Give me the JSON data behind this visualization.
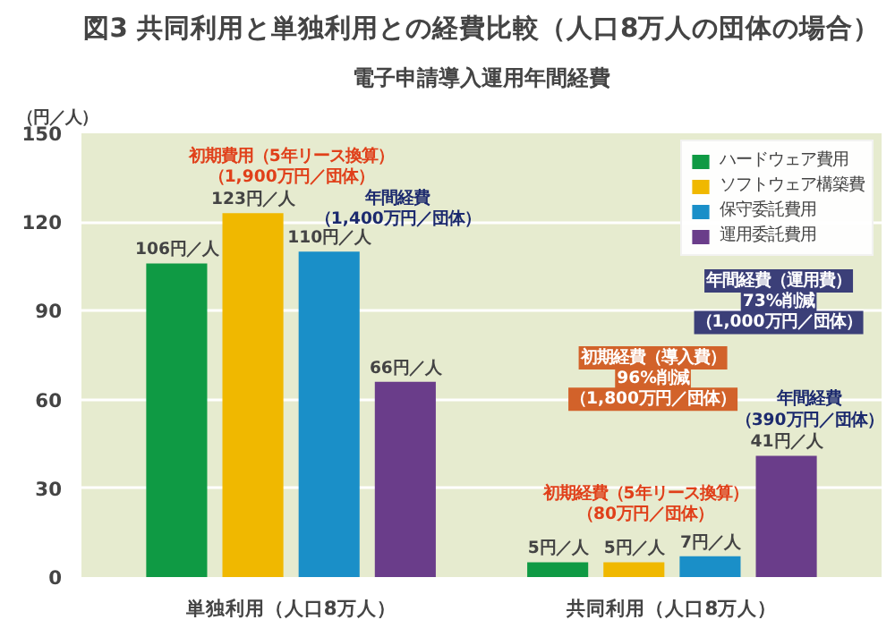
{
  "chart_data": {
    "type": "bar",
    "title": "図3 共同利用と単独利用との経費比較（人口8万人の団体の場合）",
    "subtitle": "電子申請導入運用年間経費",
    "ylabel": "（円／人）",
    "categories": [
      "単独利用（人口8万人）",
      "共同利用（人口8万人）"
    ],
    "series": [
      {
        "name": "ハードウェア費用",
        "color": "#0f9a44",
        "values": [
          106,
          5
        ],
        "value_labels": [
          "106円／人",
          "5円／人"
        ]
      },
      {
        "name": "ソフトウェア構築費",
        "color": "#f0b800",
        "values": [
          123,
          5
        ],
        "value_labels": [
          "123円／人",
          "5円／人"
        ]
      },
      {
        "name": "保守委託費用",
        "color": "#1a8fc8",
        "values": [
          110,
          7
        ],
        "value_labels": [
          "110円／人",
          "7円／人"
        ]
      },
      {
        "name": "運用委託費用",
        "color": "#6a3d8a",
        "values": [
          66,
          41
        ],
        "value_labels": [
          "66円／人",
          "41円／人"
        ]
      }
    ],
    "ylim": [
      0,
      150
    ],
    "yticks": [
      0,
      30,
      60,
      90,
      120,
      150
    ],
    "grid": "y",
    "legend": "top right",
    "annotations": [
      "初期費用（5年リース換算）",
      "（1,900万円／団体）",
      "年間経費",
      "（1,400万円／団体）",
      "年間経費（運用費）",
      "73%削減",
      "（1,000万円／団体）",
      "初期経費（導入費）",
      "96%削減",
      "（1,800万円／団体）",
      "年間経費",
      "（390万円／団体）",
      "初期経費（5年リース換算）",
      "（80万円／団体）"
    ]
  }
}
